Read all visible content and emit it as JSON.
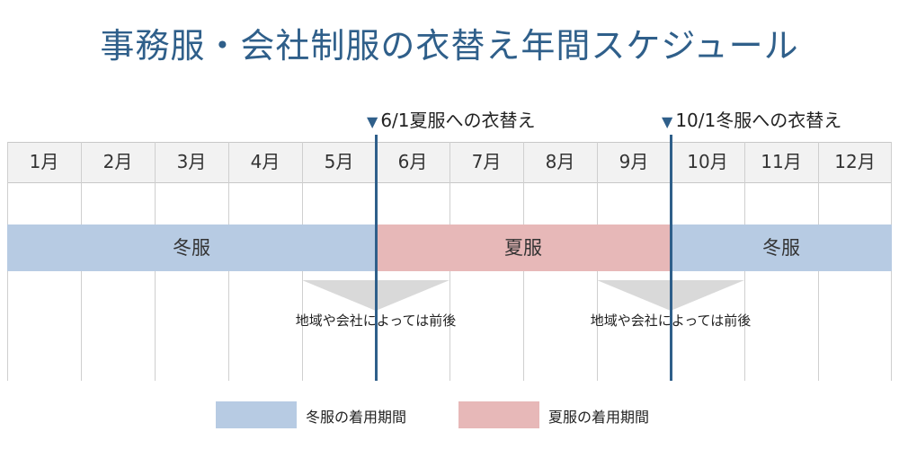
{
  "title": "事務服・会社制服の衣替え年間スケジュール",
  "markers": {
    "summer_change": "6/1夏服への衣替え",
    "winter_change": "10/1冬服への衣替え",
    "triangle_symbol": "▼"
  },
  "months": [
    "1月",
    "2月",
    "3月",
    "4月",
    "5月",
    "6月",
    "7月",
    "8月",
    "9月",
    "10月",
    "11月",
    "12月"
  ],
  "periods": {
    "winter_first": "冬服",
    "summer": "夏服",
    "winter_second": "冬服"
  },
  "notes": {
    "june_note": "地域や会社によっては前後",
    "october_note": "地域や会社によっては前後"
  },
  "legend": {
    "winter": "冬服の着用期間",
    "summer": "夏服の着用期間"
  },
  "colors": {
    "winter": "#b7cbe3",
    "summer": "#e7b8b8",
    "change_line": "#2f5f8a",
    "arrow": "#d9d9d9"
  }
}
